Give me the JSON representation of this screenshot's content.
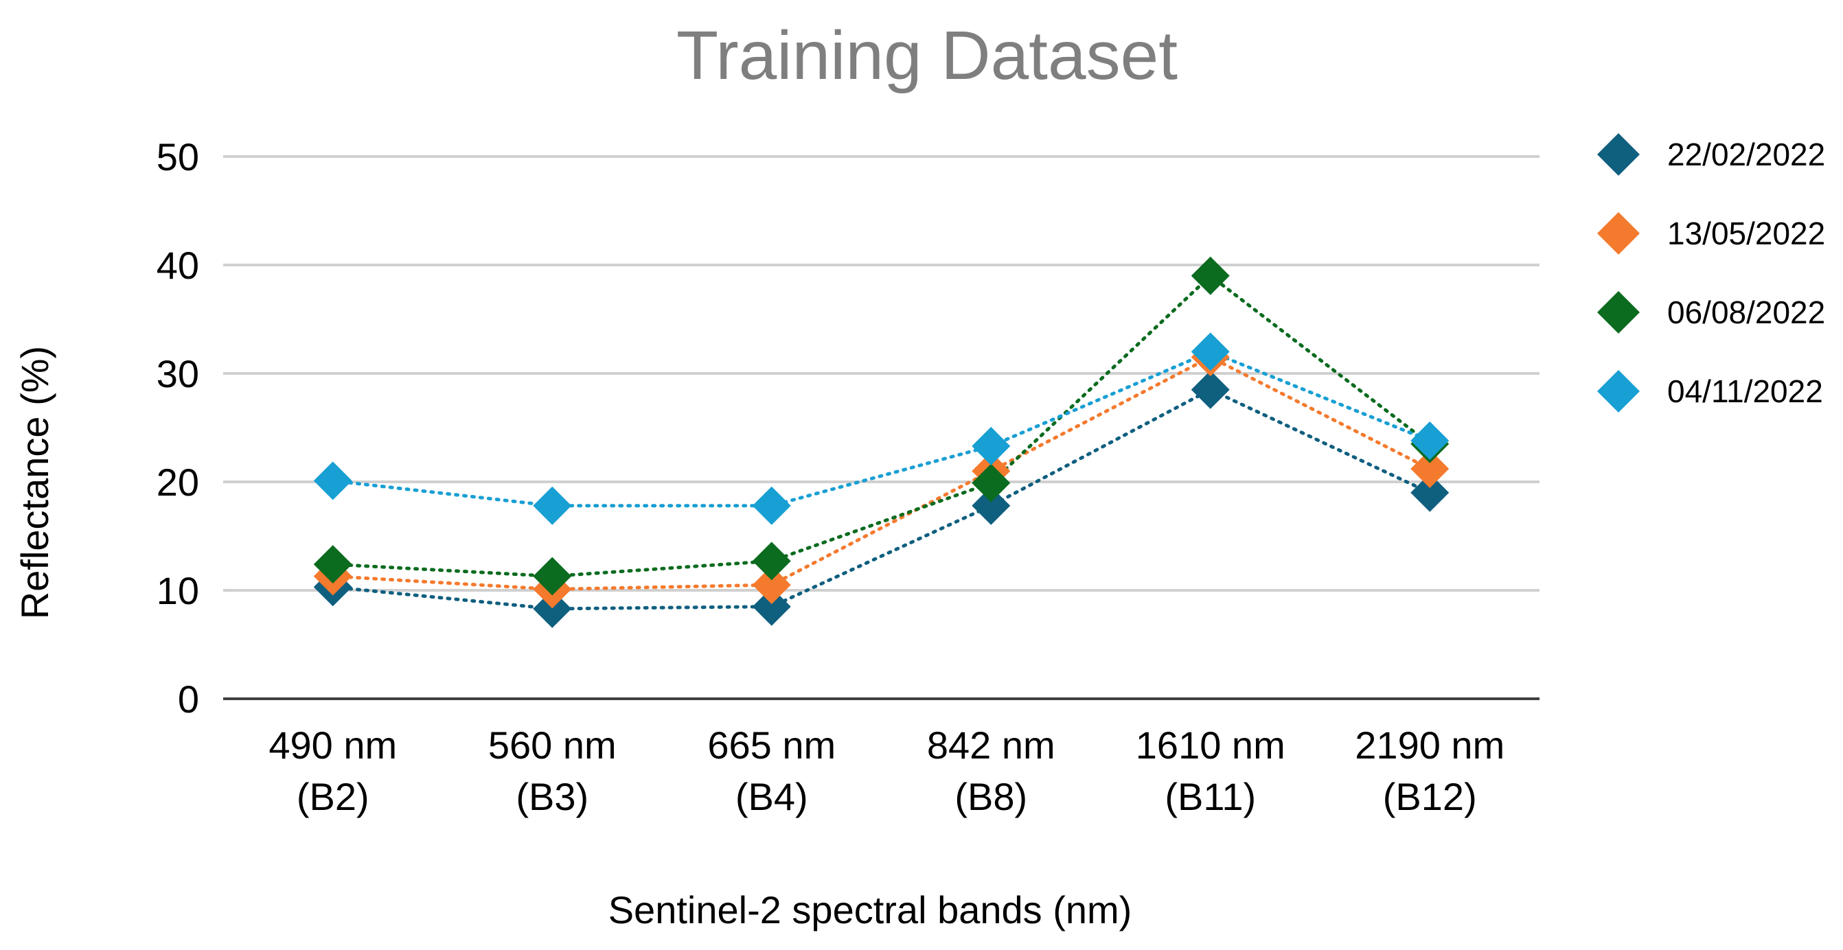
{
  "chart_data": {
    "type": "line",
    "title": "Training Dataset",
    "xlabel": "Sentinel-2 spectral bands (nm)",
    "ylabel": "Reflectance (%)",
    "ylim": [
      0,
      50
    ],
    "yticks": [
      0,
      10,
      20,
      30,
      40,
      50
    ],
    "grid": true,
    "legend_position": "right",
    "categories": [
      {
        "line1": "490 nm",
        "line2": "(B2)"
      },
      {
        "line1": "560 nm",
        "line2": "(B3)"
      },
      {
        "line1": "665 nm",
        "line2": "(B4)"
      },
      {
        "line1": "842 nm",
        "line2": "(B8)"
      },
      {
        "line1": "1610 nm",
        "line2": "(B11)"
      },
      {
        "line1": "2190 nm",
        "line2": "(B12)"
      }
    ],
    "series": [
      {
        "name": "22/02/2022",
        "color": "#0f5f7f",
        "values": [
          10.3,
          8.3,
          8.5,
          17.8,
          28.5,
          19.0
        ]
      },
      {
        "name": "13/05/2022",
        "color": "#f47a2e",
        "values": [
          11.3,
          10.1,
          10.5,
          21.0,
          31.5,
          21.2
        ]
      },
      {
        "name": "06/08/2022",
        "color": "#0b6b1f",
        "values": [
          12.4,
          11.3,
          12.7,
          19.9,
          39.0,
          23.5
        ]
      },
      {
        "name": "04/11/2022",
        "color": "#189fd3",
        "values": [
          20.1,
          17.8,
          17.8,
          23.3,
          32.0,
          23.8
        ]
      }
    ]
  }
}
